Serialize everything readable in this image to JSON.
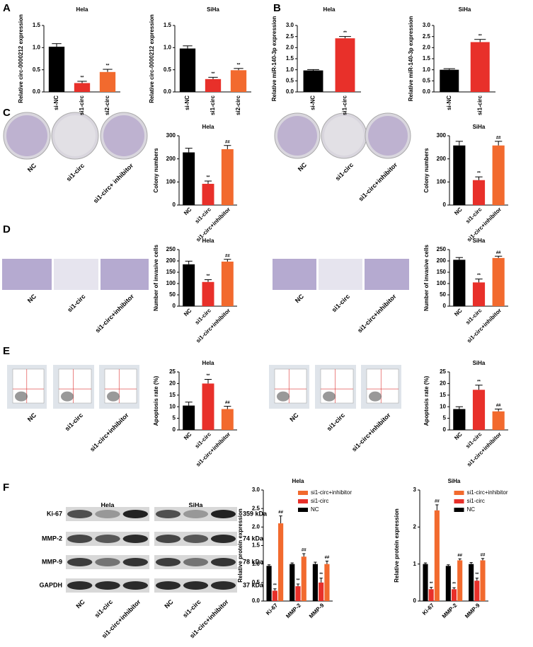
{
  "panels": [
    "A",
    "B",
    "C",
    "D",
    "E",
    "F"
  ],
  "images": [
    {
      "labels": [
        "NC",
        "si1-circ",
        "si1-circ+ inhibitor"
      ]
    },
    {
      "labels": [
        "NC",
        "si1-circ",
        "si1-circ+inhibitor"
      ]
    },
    {
      "labels": [
        "NC",
        "si1-circ",
        "si1-circ+inhibitor"
      ]
    },
    {
      "labels": [
        "NC",
        "si1-circ",
        "si1-circ+inhibitor"
      ]
    },
    {
      "labels": [
        "NC",
        "si1-circ",
        "si1-circ+inhibitor"
      ]
    },
    {
      "labels": [
        "NC",
        "si1-circ",
        "si1-circ+inhibitor"
      ]
    }
  ],
  "blot": {
    "cell_lines": [
      "Hela",
      "SiHa"
    ],
    "proteins": [
      "Ki-67",
      "MMP-2",
      "MMP-9",
      "GAPDH"
    ],
    "sizes": [
      "359 kDa",
      "74 kDa",
      "78 kDa",
      "37 kDa"
    ],
    "lanes": [
      "NC",
      "si1-circ",
      "si1-circ+inhibitor"
    ]
  },
  "chart_data": [
    {
      "type": "bar",
      "title": "Hela",
      "y_label": "Relative circ-0000212 expression",
      "categories": [
        "si-NC",
        "si1-circ",
        "si2-circ"
      ],
      "values": [
        1.02,
        0.2,
        0.45
      ],
      "errors": [
        0.07,
        0.04,
        0.06
      ],
      "annotations": [
        null,
        "**",
        "**"
      ],
      "colors": [
        "#000000",
        "#e8302a",
        "#f26a2e"
      ],
      "ylim": [
        0,
        1.5
      ],
      "yticks": [
        {
          "value": 0,
          "label": "0.0"
        },
        {
          "value": 0.5,
          "label": "0.5"
        },
        {
          "value": 1,
          "label": "1.0"
        },
        {
          "value": 1.5,
          "label": "1.5"
        }
      ]
    },
    {
      "type": "bar",
      "title": "SiHa",
      "y_label": "Relative circ-0000212 expression",
      "categories": [
        "si-NC",
        "si1-circ",
        "si2-circ"
      ],
      "values": [
        0.98,
        0.29,
        0.49
      ],
      "errors": [
        0.06,
        0.04,
        0.04
      ],
      "annotations": [
        null,
        "**",
        "**"
      ],
      "colors": [
        "#000000",
        "#e8302a",
        "#f26a2e"
      ],
      "ylim": [
        0,
        1.5
      ],
      "yticks": [
        {
          "value": 0,
          "label": "0.0"
        },
        {
          "value": 0.5,
          "label": "0.5"
        },
        {
          "value": 1,
          "label": "1.0"
        },
        {
          "value": 1.5,
          "label": "1.5"
        }
      ]
    },
    {
      "type": "bar",
      "title": "Hela",
      "y_label": "Relative miR-140-3p expression",
      "categories": [
        "si-NC",
        "si1-circ"
      ],
      "values": [
        0.97,
        2.42
      ],
      "errors": [
        0.04,
        0.08
      ],
      "annotations": [
        null,
        "**"
      ],
      "colors": [
        "#000000",
        "#e8302a"
      ],
      "ylim": [
        0,
        3
      ],
      "yticks": [
        {
          "value": 0,
          "label": "0.0"
        },
        {
          "value": 0.5,
          "label": "0.5"
        },
        {
          "value": 1,
          "label": "1.0"
        },
        {
          "value": 1.5,
          "label": "1.5"
        },
        {
          "value": 2,
          "label": "2.0"
        },
        {
          "value": 2.5,
          "label": "2.5"
        },
        {
          "value": 3,
          "label": "3.0"
        }
      ]
    },
    {
      "type": "bar",
      "title": "SiHa",
      "y_label": "Relative miR-140-3p expression",
      "categories": [
        "si-NC",
        "si1-circ"
      ],
      "values": [
        1.0,
        2.25
      ],
      "errors": [
        0.05,
        0.12
      ],
      "annotations": [
        null,
        "**"
      ],
      "colors": [
        "#000000",
        "#e8302a"
      ],
      "ylim": [
        0,
        3
      ],
      "yticks": [
        {
          "value": 0,
          "label": "0.0"
        },
        {
          "value": 0.5,
          "label": "0.5"
        },
        {
          "value": 1,
          "label": "1.0"
        },
        {
          "value": 1.5,
          "label": "1.5"
        },
        {
          "value": 2,
          "label": "2.0"
        },
        {
          "value": 2.5,
          "label": "2.5"
        },
        {
          "value": 3,
          "label": "3.0"
        }
      ]
    },
    {
      "type": "bar",
      "title": "Hela",
      "y_label": "Colony numbers",
      "categories": [
        "NC",
        "si1-circ",
        "si1-circ+inhibitor"
      ],
      "values": [
        228,
        92,
        242
      ],
      "errors": [
        18,
        12,
        16
      ],
      "annotations": [
        null,
        "**",
        "##"
      ],
      "colors": [
        "#000000",
        "#e8302a",
        "#f26a2e"
      ],
      "ylim": [
        0,
        300
      ],
      "yticks": [
        0,
        100,
        200,
        300
      ]
    },
    {
      "type": "bar",
      "title": "SiHa",
      "y_label": "Colony numbers",
      "categories": [
        "NC",
        "si1-circ",
        "si1-circ+inhibitor"
      ],
      "values": [
        258,
        108,
        258
      ],
      "errors": [
        18,
        14,
        18
      ],
      "annotations": [
        null,
        "**",
        "##"
      ],
      "colors": [
        "#000000",
        "#e8302a",
        "#f26a2e"
      ],
      "ylim": [
        0,
        300
      ],
      "yticks": [
        0,
        100,
        200,
        300
      ]
    },
    {
      "type": "bar",
      "title": "Hela",
      "y_label": "Number of invasive cells",
      "categories": [
        "NC",
        "si1-circ",
        "si1-circ+inhibitor"
      ],
      "values": [
        185,
        107,
        197
      ],
      "errors": [
        14,
        10,
        10
      ],
      "annotations": [
        null,
        "**",
        "##"
      ],
      "colors": [
        "#000000",
        "#e8302a",
        "#f26a2e"
      ],
      "ylim": [
        0,
        250
      ],
      "yticks": [
        0,
        50,
        100,
        150,
        200,
        250
      ]
    },
    {
      "type": "bar",
      "title": "SiHa",
      "y_label": "Number of invasive cells",
      "categories": [
        "NC",
        "si1-circ",
        "si1-circ+inhibitor"
      ],
      "values": [
        205,
        105,
        213
      ],
      "errors": [
        10,
        15,
        8
      ],
      "annotations": [
        null,
        "**",
        "##"
      ],
      "colors": [
        "#000000",
        "#e8302a",
        "#f26a2e"
      ],
      "ylim": [
        0,
        250
      ],
      "yticks": [
        0,
        50,
        100,
        150,
        200,
        250
      ]
    },
    {
      "type": "bar",
      "title": "Hela",
      "y_label": "Apoptosis rate (%)",
      "categories": [
        "NC",
        "si1-circ",
        "si1-circ+inhibitor"
      ],
      "values": [
        10.5,
        20,
        9
      ],
      "errors": [
        1.5,
        1.8,
        1.2
      ],
      "annotations": [
        null,
        "**",
        "##"
      ],
      "colors": [
        "#000000",
        "#e8302a",
        "#f26a2e"
      ],
      "ylim": [
        0,
        25
      ],
      "yticks": [
        0,
        5,
        10,
        15,
        20,
        25
      ]
    },
    {
      "type": "bar",
      "title": "SiHa",
      "y_label": "Apoptosis rate (%)",
      "categories": [
        "NC",
        "si1-circ",
        "si1-circ+inhibitor"
      ],
      "values": [
        9,
        17.3,
        8
      ],
      "errors": [
        1,
        2,
        1
      ],
      "annotations": [
        null,
        "**",
        "##"
      ],
      "colors": [
        "#000000",
        "#e8302a",
        "#f26a2e"
      ],
      "ylim": [
        0,
        25
      ],
      "yticks": [
        0,
        5,
        10,
        15,
        20,
        25
      ]
    },
    {
      "type": "grouped_bar",
      "title": "Hela",
      "y_label": "Relative protein expression",
      "categories": [
        "Ki-67",
        "MMP-2",
        "MMP-9"
      ],
      "series": [
        {
          "name": "si1-circ+inhibitor",
          "color": "#f26a2e",
          "values": [
            2.1,
            1.2,
            1.0
          ],
          "errors": [
            0.2,
            0.08,
            0.08
          ],
          "annotations": [
            "##",
            "##",
            "##"
          ]
        },
        {
          "name": "si1-circ",
          "color": "#e8302a",
          "values": [
            0.28,
            0.4,
            0.5
          ],
          "errors": [
            0.05,
            0.06,
            0.12
          ],
          "annotations": [
            "**",
            "**",
            "**"
          ]
        },
        {
          "name": "NC",
          "color": "#000000",
          "values": [
            0.95,
            1.0,
            1.0
          ],
          "errors": [
            0.03,
            0.03,
            0.05
          ],
          "annotations": [
            null,
            null,
            null
          ]
        }
      ],
      "ylim": [
        0,
        3
      ],
      "yticks": [
        {
          "value": 0,
          "label": "0.0"
        },
        {
          "value": 0.5,
          "label": "0.5"
        },
        {
          "value": 1,
          "label": "1.0"
        },
        {
          "value": 1.5,
          "label": "1.5"
        },
        {
          "value": 2,
          "label": "2.0"
        },
        {
          "value": 2.5,
          "label": "2.5"
        },
        {
          "value": 3,
          "label": "3.0"
        }
      ]
    },
    {
      "type": "grouped_bar",
      "title": "SiHa",
      "y_label": "Relative protein expression",
      "categories": [
        "Ki-67",
        "MMP-2",
        "MMP-9"
      ],
      "series": [
        {
          "name": "si1-circ+inhibitor",
          "color": "#f26a2e",
          "values": [
            2.45,
            1.1,
            1.1
          ],
          "errors": [
            0.15,
            0.04,
            0.05
          ],
          "annotations": [
            "##",
            "##",
            "##"
          ]
        },
        {
          "name": "si1-circ",
          "color": "#e8302a",
          "values": [
            0.32,
            0.32,
            0.55
          ],
          "errors": [
            0.05,
            0.04,
            0.07
          ],
          "annotations": [
            "**",
            "**",
            "**"
          ]
        },
        {
          "name": "NC",
          "color": "#000000",
          "values": [
            1.0,
            0.95,
            1.0
          ],
          "errors": [
            0.03,
            0.03,
            0.04
          ],
          "annotations": [
            null,
            null,
            null
          ]
        }
      ],
      "ylim": [
        0,
        3
      ],
      "yticks": [
        0,
        1,
        2,
        3
      ]
    }
  ]
}
